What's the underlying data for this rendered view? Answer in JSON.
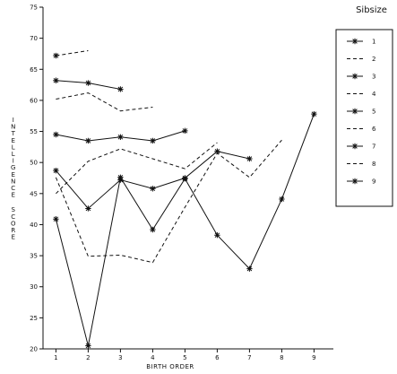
{
  "chart_data": {
    "type": "line",
    "xlabel": "BIRTH ORDER",
    "ylabel": "INTELLIGENCE SCORE",
    "xlim": [
      0.6,
      9.6
    ],
    "ylim": [
      20,
      75
    ],
    "x_ticks": [
      "1",
      "2",
      "3",
      "4",
      "5",
      "6",
      "7",
      "8",
      "9"
    ],
    "y_ticks": [
      "20",
      "25",
      "30",
      "35",
      "40",
      "45",
      "50",
      "55",
      "60",
      "65",
      "70",
      "75"
    ],
    "grid": false,
    "legend": {
      "title": "Sibsize",
      "position": "right",
      "entries": [
        "1",
        "2",
        "3",
        "4",
        "5",
        "6",
        "7",
        "8",
        "9"
      ]
    },
    "series": [
      {
        "name": "1",
        "style": "solid",
        "marker": true,
        "x": [
          1
        ],
        "y": [
          67.2
        ]
      },
      {
        "name": "2",
        "style": "dashed",
        "marker": false,
        "x": [
          1,
          2
        ],
        "y": [
          67.2,
          68.0
        ]
      },
      {
        "name": "3",
        "style": "solid",
        "marker": true,
        "x": [
          1,
          2,
          3
        ],
        "y": [
          63.2,
          62.8,
          61.8
        ]
      },
      {
        "name": "4",
        "style": "dashed",
        "marker": false,
        "x": [
          1,
          2,
          3,
          4
        ],
        "y": [
          60.2,
          61.2,
          58.3,
          58.9
        ]
      },
      {
        "name": "5",
        "style": "solid",
        "marker": true,
        "x": [
          1,
          2,
          3,
          4,
          5
        ],
        "y": [
          54.5,
          53.5,
          54.1,
          53.5,
          55.1
        ]
      },
      {
        "name": "6",
        "style": "dashed",
        "marker": false,
        "x": [
          1,
          2,
          3,
          4,
          5,
          6
        ],
        "y": [
          45.0,
          50.2,
          52.2,
          50.6,
          49.0,
          53.2
        ]
      },
      {
        "name": "7",
        "style": "solid",
        "marker": true,
        "x": [
          1,
          2,
          3,
          4,
          5,
          6,
          7
        ],
        "y": [
          48.7,
          42.6,
          47.2,
          45.8,
          47.5,
          51.8,
          50.6
        ]
      },
      {
        "name": "8",
        "style": "dashed",
        "marker": false,
        "x": [
          1,
          2,
          3,
          4,
          5,
          6,
          7,
          8
        ],
        "y": [
          47.6,
          34.9,
          35.1,
          33.9,
          42.8,
          51.5,
          47.6,
          53.6
        ]
      },
      {
        "name": "9",
        "style": "solid",
        "marker": true,
        "x": [
          1,
          2,
          3,
          4,
          5,
          6,
          7,
          8,
          9
        ],
        "y": [
          40.9,
          20.5,
          47.6,
          39.2,
          47.4,
          38.3,
          32.9,
          44.1,
          57.8
        ]
      }
    ]
  }
}
